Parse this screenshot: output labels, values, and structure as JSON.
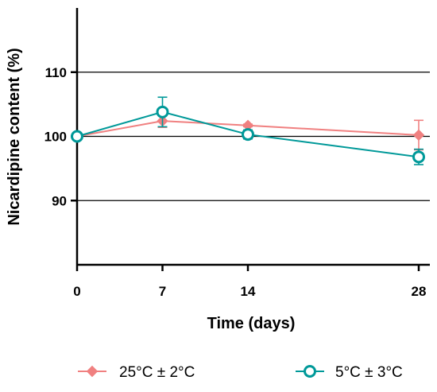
{
  "chart_data": {
    "type": "line",
    "xlabel": "Time (days)",
    "ylabel": "Nicardipine content (%)",
    "x": [
      0,
      7,
      14,
      28
    ],
    "xticks": [
      0,
      7,
      14,
      28
    ],
    "yticks": [
      90,
      100,
      110
    ],
    "xlim": [
      0,
      28
    ],
    "ylim": [
      80,
      120
    ],
    "grid": "horizontal at y ticks",
    "legend_position": "bottom",
    "series": [
      {
        "name": "25°C ± 2°C",
        "values": [
          100.0,
          102.4,
          101.7,
          100.2
        ],
        "errors": [
          0.2,
          1.0,
          0.2,
          2.3
        ],
        "color": "#F08080",
        "marker": "filled-diamond"
      },
      {
        "name": "5°C ± 3°C",
        "values": [
          100.0,
          103.8,
          100.3,
          96.8
        ],
        "errors": [
          0.2,
          2.3,
          0.7,
          1.2
        ],
        "color": "#009999",
        "marker": "open-circle"
      }
    ]
  }
}
